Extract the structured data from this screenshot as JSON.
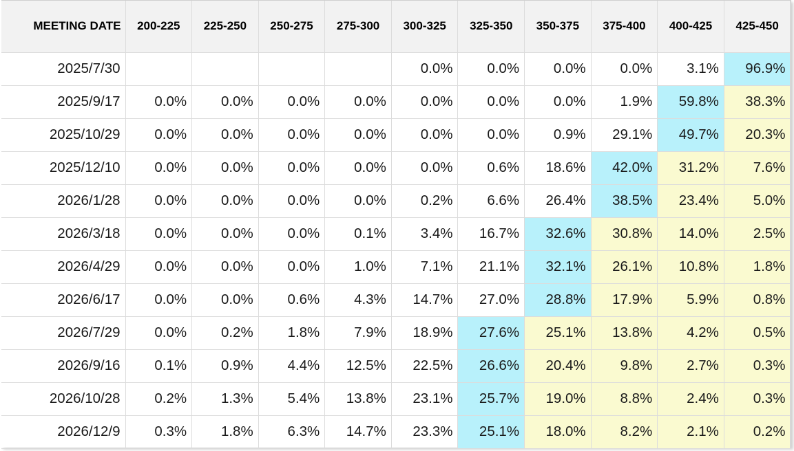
{
  "chart_data": {
    "type": "table",
    "title": "",
    "header": {
      "date": "MEETING DATE",
      "ranges": [
        "200-225",
        "225-250",
        "250-275",
        "275-300",
        "300-325",
        "325-350",
        "350-375",
        "375-400",
        "400-425",
        "425-450"
      ]
    },
    "rows": [
      {
        "date": "2025/7/30",
        "values": [
          "",
          "",
          "",
          "",
          "0.0%",
          "0.0%",
          "0.0%",
          "0.0%",
          "3.1%",
          "96.9%"
        ]
      },
      {
        "date": "2025/9/17",
        "values": [
          "0.0%",
          "0.0%",
          "0.0%",
          "0.0%",
          "0.0%",
          "0.0%",
          "0.0%",
          "1.9%",
          "59.8%",
          "38.3%"
        ]
      },
      {
        "date": "2025/10/29",
        "values": [
          "0.0%",
          "0.0%",
          "0.0%",
          "0.0%",
          "0.0%",
          "0.0%",
          "0.9%",
          "29.1%",
          "49.7%",
          "20.3%"
        ]
      },
      {
        "date": "2025/12/10",
        "values": [
          "0.0%",
          "0.0%",
          "0.0%",
          "0.0%",
          "0.0%",
          "0.6%",
          "18.6%",
          "42.0%",
          "31.2%",
          "7.6%"
        ]
      },
      {
        "date": "2026/1/28",
        "values": [
          "0.0%",
          "0.0%",
          "0.0%",
          "0.0%",
          "0.2%",
          "6.6%",
          "26.4%",
          "38.5%",
          "23.4%",
          "5.0%"
        ]
      },
      {
        "date": "2026/3/18",
        "values": [
          "0.0%",
          "0.0%",
          "0.0%",
          "0.1%",
          "3.4%",
          "16.7%",
          "32.6%",
          "30.8%",
          "14.0%",
          "2.5%"
        ]
      },
      {
        "date": "2026/4/29",
        "values": [
          "0.0%",
          "0.0%",
          "0.0%",
          "1.0%",
          "7.1%",
          "21.1%",
          "32.1%",
          "26.1%",
          "10.8%",
          "1.8%"
        ]
      },
      {
        "date": "2026/6/17",
        "values": [
          "0.0%",
          "0.0%",
          "0.6%",
          "4.3%",
          "14.7%",
          "27.0%",
          "28.8%",
          "17.9%",
          "5.9%",
          "0.8%"
        ]
      },
      {
        "date": "2026/7/29",
        "values": [
          "0.0%",
          "0.2%",
          "1.8%",
          "7.9%",
          "18.9%",
          "27.6%",
          "25.1%",
          "13.8%",
          "4.2%",
          "0.5%"
        ]
      },
      {
        "date": "2026/9/16",
        "values": [
          "0.1%",
          "0.9%",
          "4.4%",
          "12.5%",
          "22.5%",
          "26.6%",
          "20.4%",
          "9.8%",
          "2.7%",
          "0.3%"
        ]
      },
      {
        "date": "2026/10/28",
        "values": [
          "0.2%",
          "1.3%",
          "5.4%",
          "13.8%",
          "23.1%",
          "25.7%",
          "19.0%",
          "8.8%",
          "2.4%",
          "0.3%"
        ]
      },
      {
        "date": "2026/12/9",
        "values": [
          "0.3%",
          "1.8%",
          "6.3%",
          "14.7%",
          "23.3%",
          "25.1%",
          "18.0%",
          "8.2%",
          "2.1%",
          "0.2%"
        ]
      }
    ],
    "highlight_columns": [
      9,
      8,
      8,
      7,
      7,
      6,
      6,
      6,
      5,
      5,
      5,
      5
    ],
    "colors": {
      "header_bg": "#f2f2f2",
      "highlight": "#b8f1fb",
      "above_highlight": "#fafad0",
      "grid": "#dcdcdc"
    }
  }
}
